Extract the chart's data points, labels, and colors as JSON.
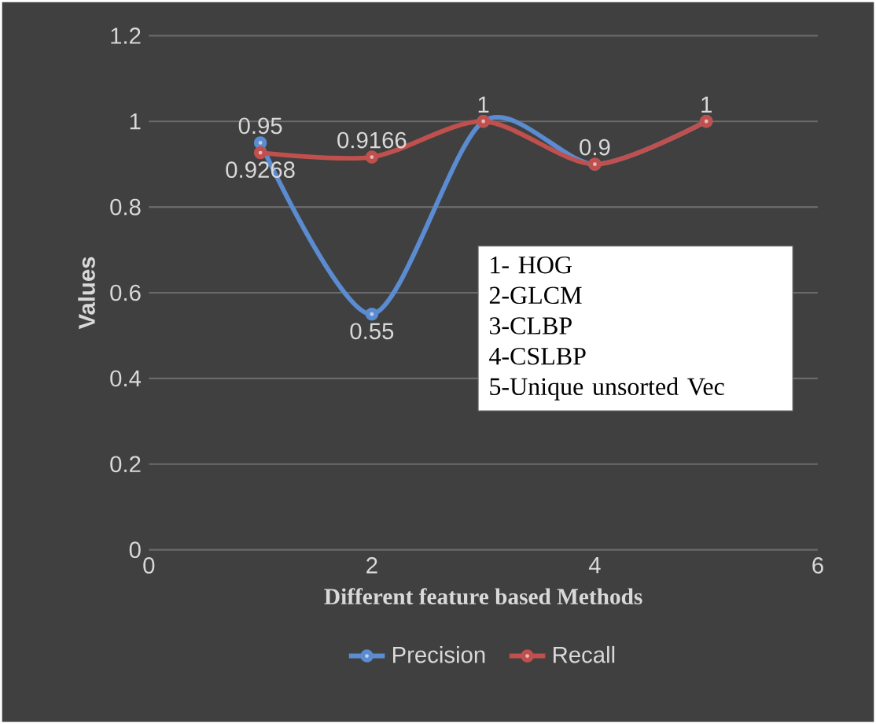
{
  "chart_data": {
    "type": "line",
    "xlabel": "Different feature based Methods",
    "ylabel": "Values",
    "x": [
      1,
      2,
      3,
      4,
      5
    ],
    "series": [
      {
        "name": "Precision",
        "color": "#5b8bd0",
        "values": [
          0.95,
          0.55,
          1,
          0.9,
          1
        ],
        "value_labels": [
          "0.95",
          "0.55",
          "1",
          "0.9",
          "1"
        ]
      },
      {
        "name": "Recall",
        "color": "#c0504d",
        "values": [
          0.9268,
          0.9166,
          1,
          0.9,
          1
        ],
        "value_labels": [
          "0.9268",
          "0.9166",
          null,
          null,
          null
        ]
      }
    ],
    "xlim": [
      0,
      6
    ],
    "xticks": [
      0,
      2,
      4,
      6
    ],
    "ylim": [
      0,
      1.2
    ],
    "yticks": [
      0,
      0.2,
      0.4,
      0.6,
      0.8,
      1,
      1.2
    ],
    "grid": "y",
    "legend": "bottom",
    "marker": "circle",
    "line_style": "solid",
    "annotations": [
      "1- HOG",
      "2-GLCM",
      "3-CLBP",
      "4-CSLBP",
      "5-Unique unsorted Vec"
    ]
  }
}
